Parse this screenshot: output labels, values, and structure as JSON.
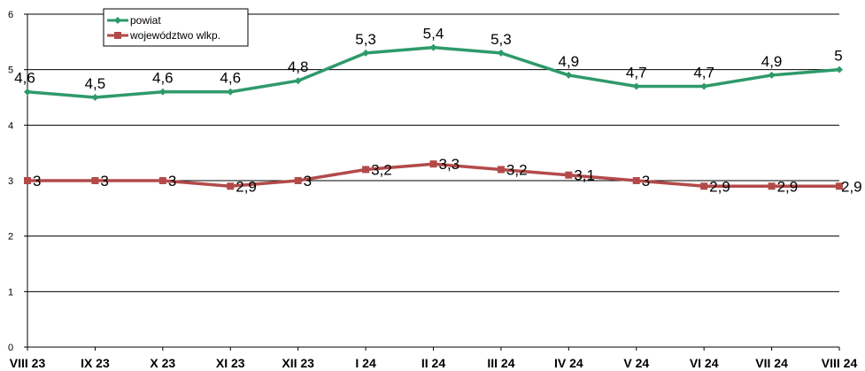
{
  "chart_data": {
    "type": "line",
    "title": "",
    "xlabel": "",
    "ylabel": "",
    "ylim": [
      0,
      6
    ],
    "yticks": [
      0,
      1,
      2,
      3,
      4,
      5,
      6
    ],
    "grid": true,
    "legend_position": "top-left",
    "categories": [
      "VIII 23",
      "IX 23",
      "X 23",
      "XI 23",
      "XII 23",
      "I 24",
      "II 24",
      "III 24",
      "IV 24",
      "V 24",
      "VI 24",
      "VII 24",
      "VIII 24"
    ],
    "series": [
      {
        "name": "powiat",
        "color": "#2e9a6a",
        "marker": "diamond",
        "values": [
          4.6,
          4.5,
          4.6,
          4.6,
          4.8,
          5.3,
          5.4,
          5.3,
          4.9,
          4.7,
          4.7,
          4.9,
          5
        ],
        "labels": [
          "4,6",
          "4,5",
          "4,6",
          "4,6",
          "4,8",
          "5,3",
          "5,4",
          "5,3",
          "4,9",
          "4,7",
          "4,7",
          "4,9",
          "5"
        ]
      },
      {
        "name": "województwo wlkp.",
        "color": "#b34a4a",
        "marker": "square",
        "values": [
          3,
          3,
          3,
          2.9,
          3,
          3.2,
          3.3,
          3.2,
          3.1,
          3,
          2.9,
          2.9,
          2.9
        ],
        "labels": [
          "3",
          "3",
          "3",
          "2,9",
          "3",
          "3,2",
          "3,3",
          "3,2",
          "3,1",
          "3",
          "2,9",
          "2,9",
          "2,9"
        ]
      }
    ]
  }
}
